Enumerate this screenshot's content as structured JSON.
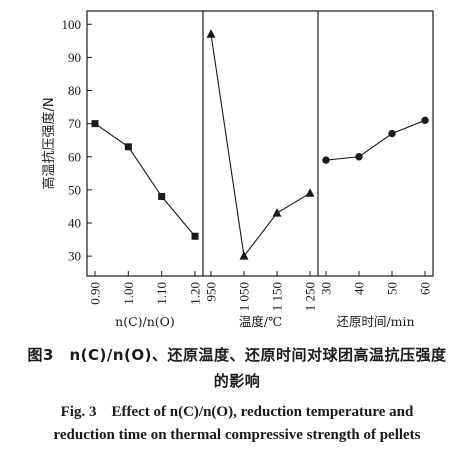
{
  "figure": {
    "caption_cn_line1": "图3　n(C)/n(O)、还原温度、还原时间对球团高温抗压强度",
    "caption_cn_line2": "的影响",
    "caption_en_line1": "Fig. 3　Effect of n(C)/n(O), reduction temperature and",
    "caption_en_line2": "reduction time on thermal compressive strength of pellets"
  },
  "chart_data": {
    "type": "line",
    "ylabel": "高温抗压强度/N",
    "ylim": [
      24,
      104
    ],
    "yticks": [
      30,
      40,
      50,
      60,
      70,
      80,
      90,
      100
    ],
    "grid": false,
    "legend": "none",
    "colors": {
      "line": "#1a1a1a",
      "axis": "#1a1a1a"
    },
    "panels": [
      {
        "xlabel": "n(C)/n(O)",
        "marker": "square",
        "x": [
          0.9,
          1.0,
          1.1,
          1.2
        ],
        "tick_labels": [
          "0.90",
          "1.00",
          "1.10",
          "1.20"
        ],
        "values": [
          70,
          63,
          48,
          36
        ]
      },
      {
        "xlabel": "温度/℃",
        "marker": "triangle",
        "x": [
          950,
          1050,
          1150,
          1250
        ],
        "tick_labels": [
          "950",
          "1 050",
          "1 150",
          "1 250"
        ],
        "values": [
          97,
          30,
          43,
          49
        ]
      },
      {
        "xlabel": "还原时间/min",
        "marker": "circle",
        "x": [
          30,
          40,
          50,
          60
        ],
        "tick_labels": [
          "30",
          "40",
          "50",
          "60"
        ],
        "values": [
          59,
          60,
          67,
          71
        ]
      }
    ]
  }
}
